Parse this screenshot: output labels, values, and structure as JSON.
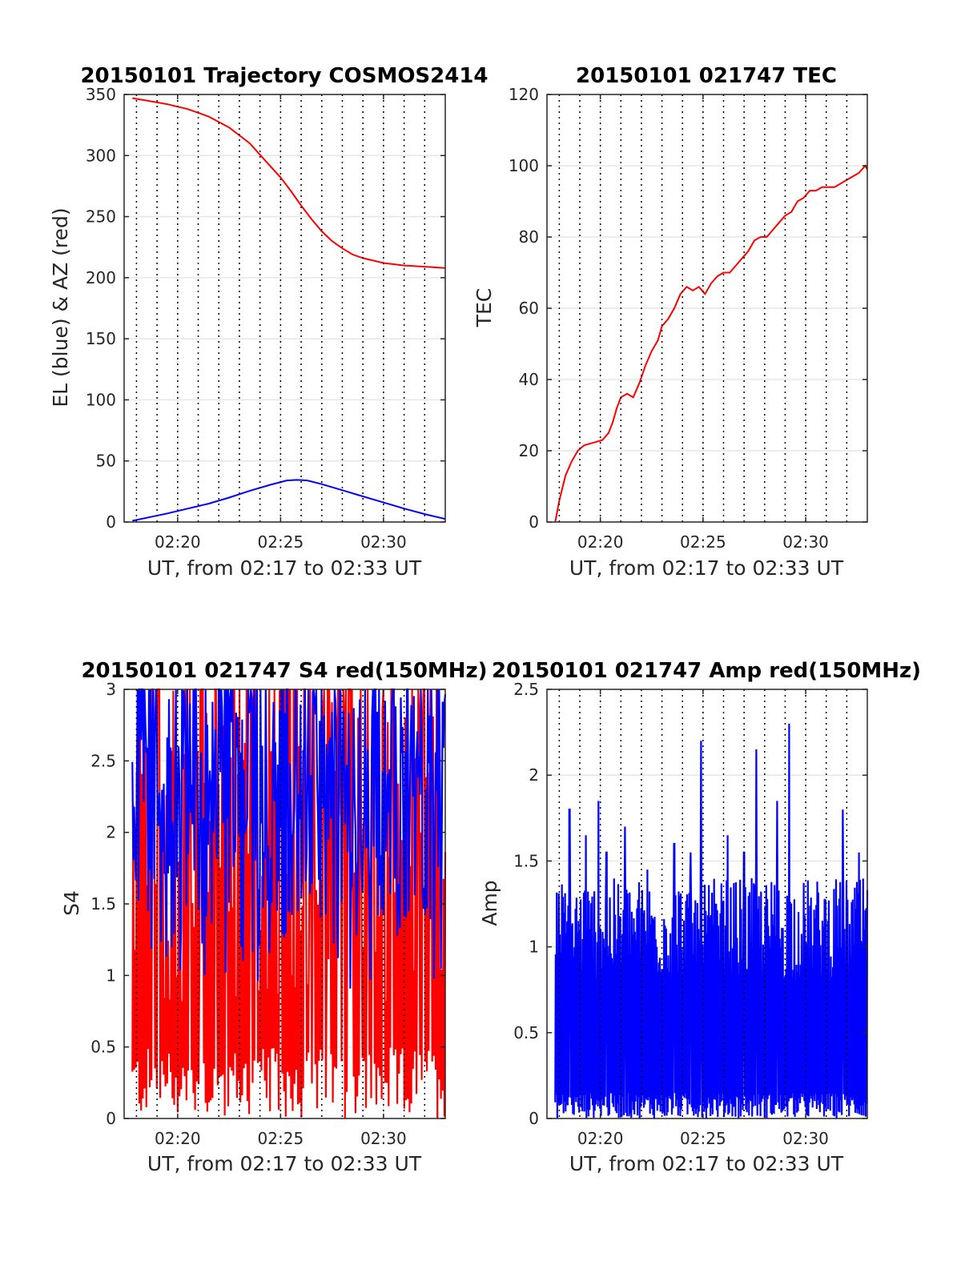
{
  "chart_data": [
    {
      "type": "line",
      "title": "20150101 Trajectory COSMOS2414",
      "xlabel": "UT, from 02:17 to 02:33 UT",
      "ylabel": "EL (blue) & AZ (red)",
      "x_unit": "minutes after 02:00 UT",
      "xlim": [
        17.4,
        33.0
      ],
      "ylim": [
        0,
        350
      ],
      "x_ticks": [
        20,
        25,
        30
      ],
      "x_tick_labels": [
        "02:20",
        "02:25",
        "02:30"
      ],
      "y_ticks": [
        0,
        50,
        100,
        150,
        200,
        250,
        300,
        350
      ],
      "y_tick_labels": [
        "0",
        "50",
        "100",
        "150",
        "200",
        "250",
        "300",
        "350"
      ],
      "vlines_dotted": [
        18,
        19,
        20,
        21,
        22,
        23,
        24,
        25,
        26,
        27,
        28,
        29,
        30,
        31,
        32
      ],
      "grid": true,
      "series": [
        {
          "color": "#ff0000",
          "x": [
            17.8,
            18.5,
            19.5,
            20.5,
            21.5,
            22.5,
            23.5,
            24.3,
            25.0,
            25.5,
            26.0,
            26.5,
            27.0,
            27.5,
            28.0,
            28.5,
            29.0,
            30.0,
            31.0,
            32.0,
            33.0
          ],
          "y": [
            347,
            345,
            342,
            338,
            332,
            323,
            310,
            295,
            282,
            271,
            259,
            248,
            238,
            230,
            224,
            219,
            216,
            212,
            210,
            209,
            208
          ]
        },
        {
          "color": "#0000ff",
          "x": [
            17.8,
            18.5,
            19.5,
            20.5,
            21.5,
            22.5,
            23.5,
            24.5,
            25.3,
            25.8,
            26.3,
            27.0,
            28.0,
            29.0,
            30.0,
            31.0,
            32.0,
            33.0
          ],
          "y": [
            1,
            3.5,
            7,
            11,
            15,
            20,
            25.5,
            30.5,
            34,
            34.5,
            34,
            31,
            26,
            21,
            16,
            11,
            6.5,
            2.5
          ]
        }
      ]
    },
    {
      "type": "line",
      "title": "20150101 021747 TEC",
      "xlabel": "UT, from 02:17 to 02:33 UT",
      "ylabel": "TEC",
      "x_unit": "minutes after 02:00 UT",
      "xlim": [
        17.4,
        33.0
      ],
      "ylim": [
        0,
        120
      ],
      "x_ticks": [
        20,
        25,
        30
      ],
      "x_tick_labels": [
        "02:20",
        "02:25",
        "02:30"
      ],
      "y_ticks": [
        0,
        20,
        40,
        60,
        80,
        100,
        120
      ],
      "y_tick_labels": [
        "0",
        "20",
        "40",
        "60",
        "80",
        "100",
        "120"
      ],
      "vlines_dotted": [
        18,
        19,
        20,
        21,
        22,
        23,
        24,
        25,
        26,
        27,
        28,
        29,
        30,
        31,
        32
      ],
      "grid": true,
      "series": [
        {
          "color": "#ff0000",
          "x": [
            17.8,
            18.0,
            18.3,
            18.6,
            18.9,
            19.2,
            19.5,
            19.8,
            20.1,
            20.4,
            20.6,
            20.8,
            21.0,
            21.3,
            21.6,
            21.9,
            22.2,
            22.5,
            22.8,
            23.0,
            23.3,
            23.6,
            23.9,
            24.2,
            24.5,
            24.8,
            25.1,
            25.4,
            25.7,
            26.0,
            26.3,
            26.6,
            26.9,
            27.2,
            27.5,
            27.8,
            28.1,
            28.4,
            28.7,
            29.0,
            29.3,
            29.6,
            29.9,
            30.2,
            30.5,
            30.8,
            31.1,
            31.4,
            31.7,
            32.0,
            32.3,
            32.6,
            32.9,
            33.0
          ],
          "y": [
            0,
            6,
            13,
            17,
            20,
            21.5,
            22,
            22.5,
            23,
            25,
            28,
            32,
            35,
            36,
            35,
            39,
            44,
            48,
            51,
            55,
            57,
            60,
            64,
            66,
            65,
            66,
            64,
            67,
            69,
            70,
            70,
            72,
            74,
            76,
            79,
            80,
            80,
            82,
            84,
            86,
            87,
            90,
            91,
            93,
            93,
            94,
            94,
            94,
            95,
            96,
            97,
            98,
            100,
            99
          ]
        }
      ]
    },
    {
      "type": "line",
      "title": "20150101 021747 S4 red(150MHz)",
      "xlabel": "UT, from 02:17 to 02:33 UT",
      "ylabel": "S4",
      "x_unit": "minutes after 02:00 UT",
      "xlim": [
        17.4,
        33.0
      ],
      "ylim": [
        0,
        3
      ],
      "x_ticks": [
        20,
        25,
        30
      ],
      "x_tick_labels": [
        "02:20",
        "02:25",
        "02:30"
      ],
      "y_ticks": [
        0,
        0.5,
        1,
        1.5,
        2,
        2.5,
        3
      ],
      "y_tick_labels": [
        "0",
        "0.5",
        "1",
        "1.5",
        "2",
        "2.5",
        "3"
      ],
      "vlines_dotted": [
        18,
        19,
        20,
        21,
        22,
        23,
        24,
        25,
        26,
        27,
        28,
        29,
        30,
        31,
        32
      ],
      "grid": true,
      "series": [
        {
          "color": "#ff0000",
          "x_range": [
            17.8,
            33.0
          ],
          "sample_count": 360,
          "y_range": [
            0,
            3
          ],
          "note": "dense oscillation filling most of the range"
        },
        {
          "color": "#0000ff",
          "x_range": [
            17.8,
            33.0
          ],
          "sample_count": 360,
          "y_range": [
            0.9,
            3
          ],
          "typical_range": [
            1.4,
            3
          ]
        }
      ]
    },
    {
      "type": "line",
      "title": "20150101 021747 Amp red(150MHz)",
      "xlabel": "UT, from 02:17 to 02:33 UT",
      "ylabel": "Amp",
      "x_unit": "minutes after 02:00 UT",
      "xlim": [
        17.4,
        33.0
      ],
      "ylim": [
        0,
        2.5
      ],
      "x_ticks": [
        20,
        25,
        30
      ],
      "x_tick_labels": [
        "02:20",
        "02:25",
        "02:30"
      ],
      "y_ticks": [
        0,
        0.5,
        1,
        1.5,
        2,
        2.5
      ],
      "y_tick_labels": [
        "0",
        "0.5",
        "1",
        "1.5",
        "2",
        "2.5"
      ],
      "vlines_dotted": [
        18,
        19,
        20,
        21,
        22,
        23,
        24,
        25,
        26,
        27,
        28,
        29,
        30,
        31,
        32
      ],
      "grid": true,
      "series": [
        {
          "color": "#0000ff",
          "x_range": [
            17.8,
            33.0
          ],
          "sample_count": 600,
          "y_range": [
            0,
            1.4
          ],
          "spikes": [
            {
              "x": 18.5,
              "y": 1.8
            },
            {
              "x": 19.3,
              "y": 1.65
            },
            {
              "x": 19.9,
              "y": 1.85
            },
            {
              "x": 20.3,
              "y": 1.55
            },
            {
              "x": 21.2,
              "y": 1.7
            },
            {
              "x": 22.3,
              "y": 1.45
            },
            {
              "x": 23.6,
              "y": 1.6
            },
            {
              "x": 24.4,
              "y": 1.55
            },
            {
              "x": 24.9,
              "y": 2.2
            },
            {
              "x": 26.2,
              "y": 1.65
            },
            {
              "x": 27.0,
              "y": 1.55
            },
            {
              "x": 27.6,
              "y": 2.15
            },
            {
              "x": 28.6,
              "y": 1.85
            },
            {
              "x": 29.2,
              "y": 2.3
            },
            {
              "x": 31.8,
              "y": 1.8
            },
            {
              "x": 32.6,
              "y": 1.55
            }
          ]
        }
      ]
    }
  ]
}
